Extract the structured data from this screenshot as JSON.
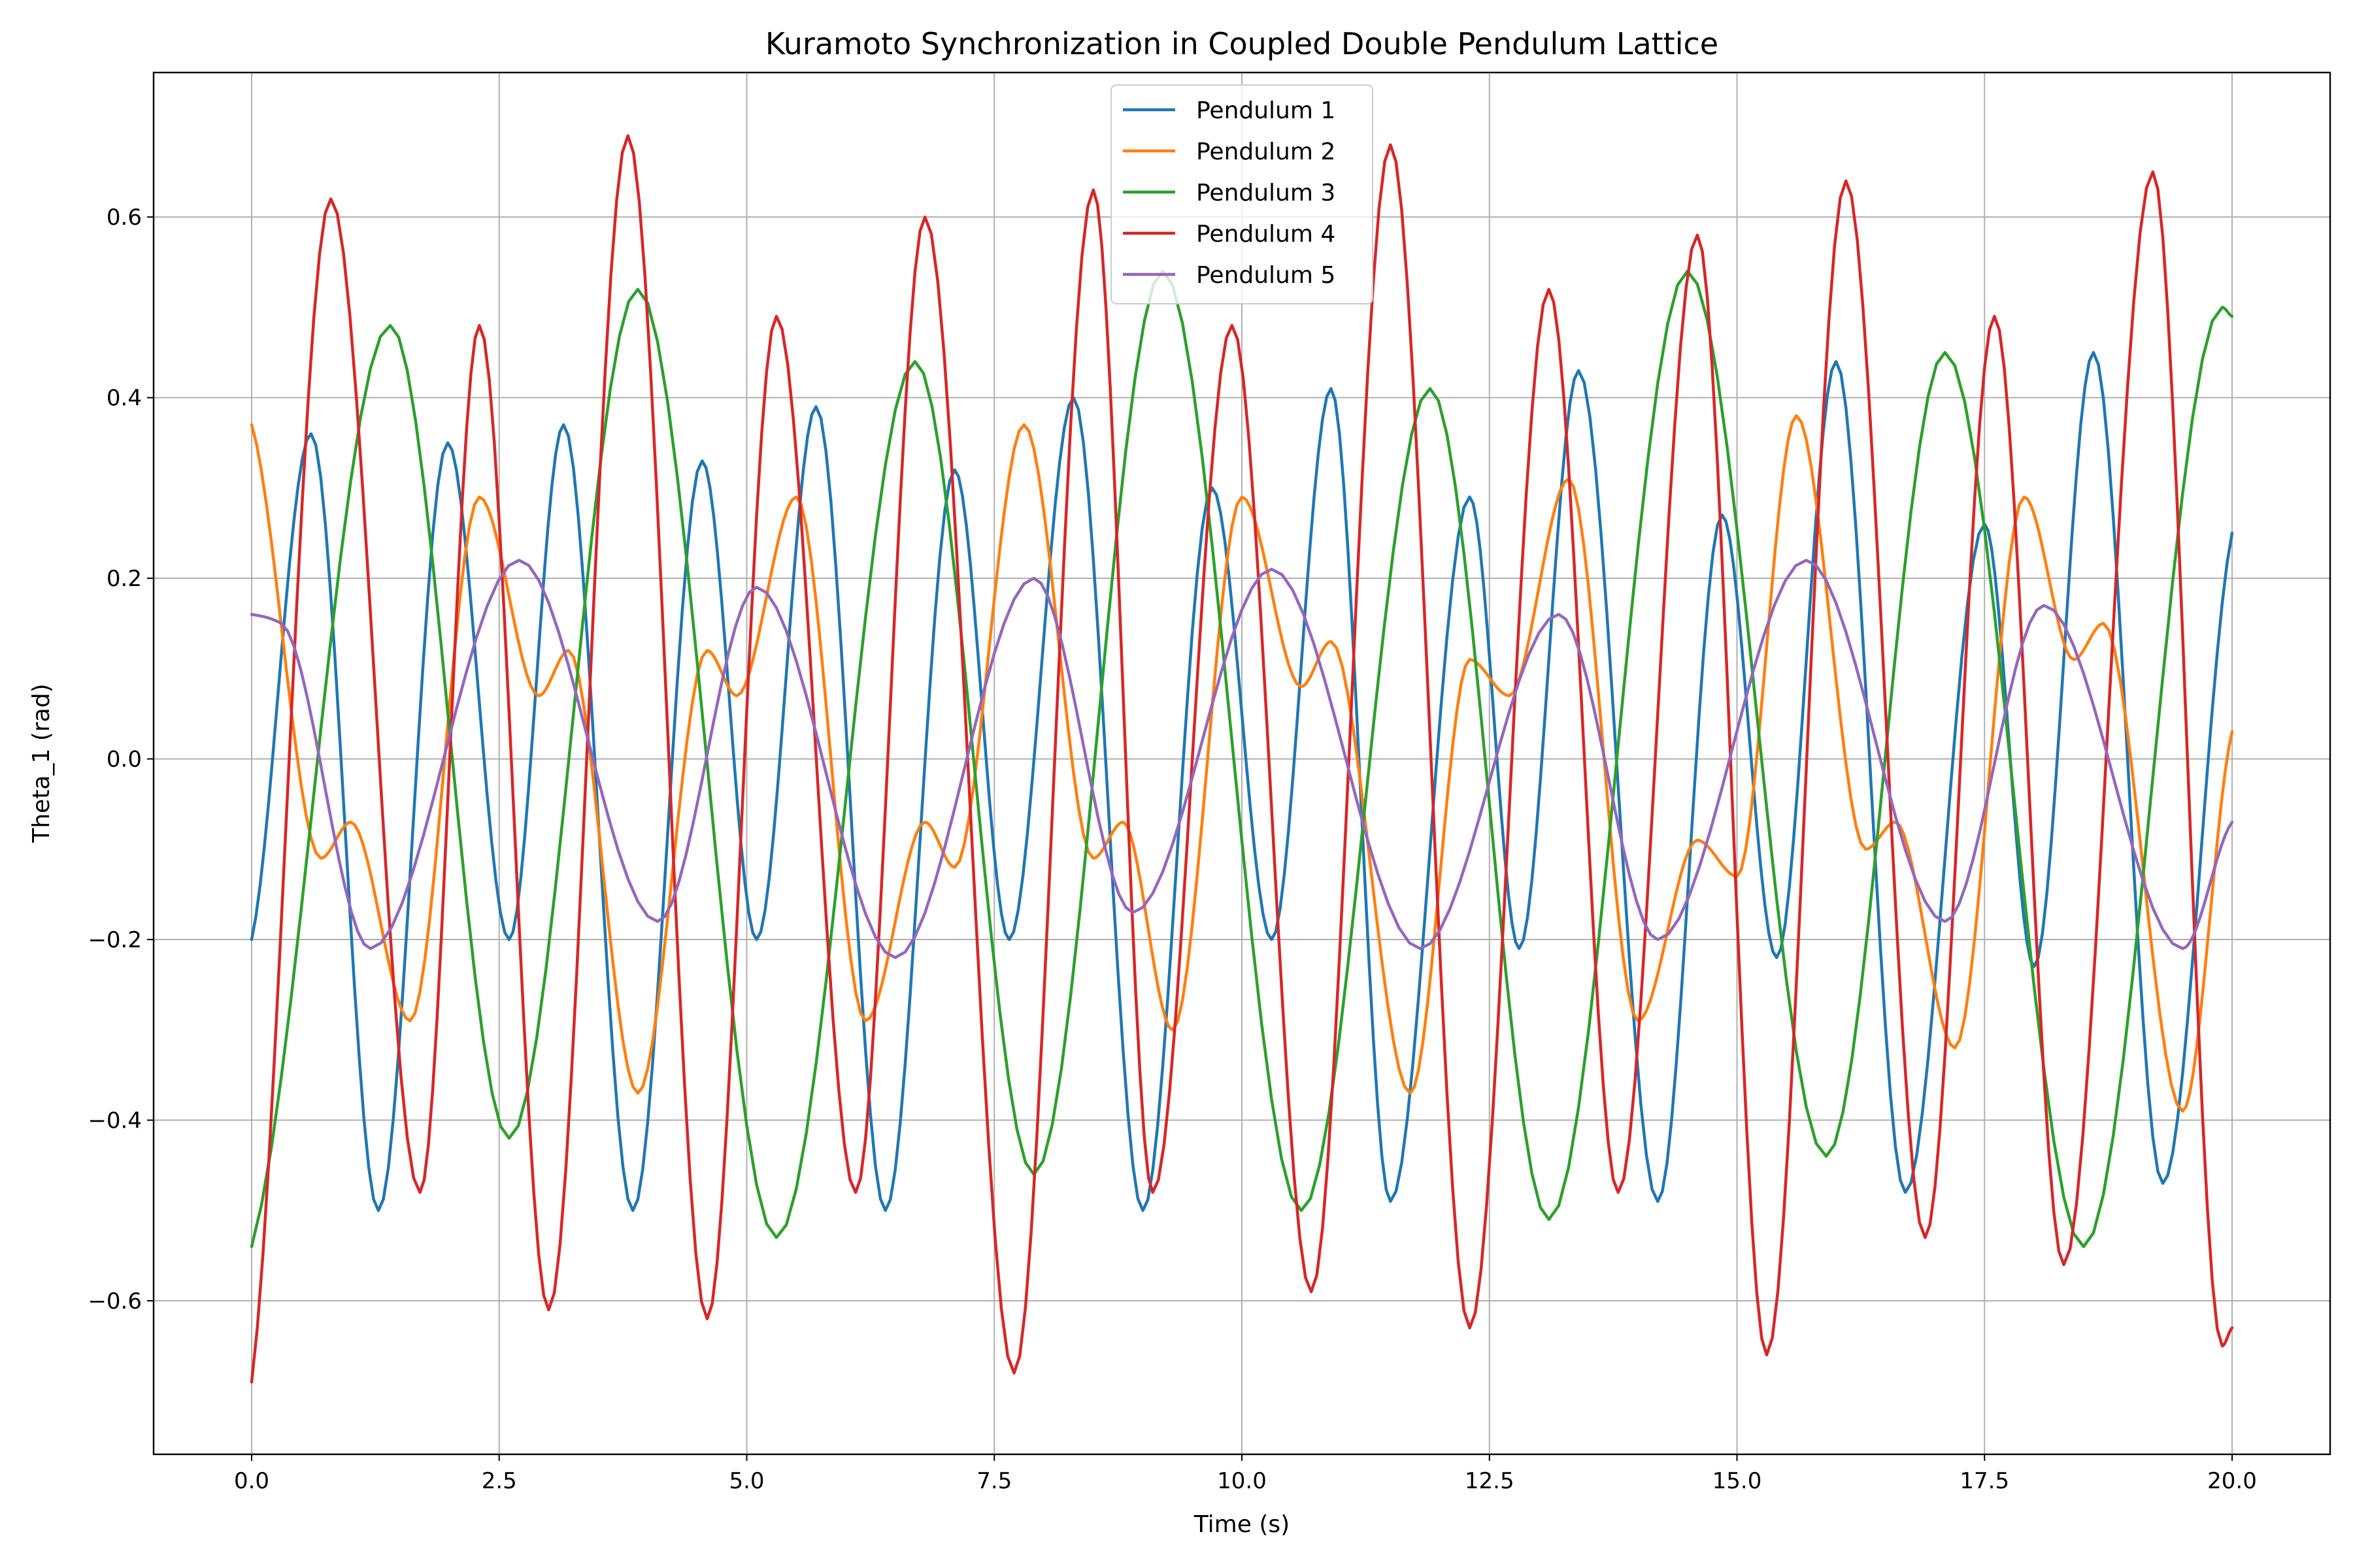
{
  "chart_data": {
    "type": "line",
    "title": "Kuramoto Synchronization in Coupled Double Pendulum Lattice",
    "xlabel": "Time (s)",
    "ylabel": "Theta_1 (rad)",
    "xlim": [
      -0.99,
      20.99
    ],
    "ylim": [
      -0.77,
      0.76
    ],
    "xticks": [
      0.0,
      2.5,
      5.0,
      7.5,
      10.0,
      12.5,
      15.0,
      17.5,
      20.0
    ],
    "xtick_labels": [
      "0.0",
      "2.5",
      "5.0",
      "7.5",
      "10.0",
      "12.5",
      "15.0",
      "17.5",
      "20.0"
    ],
    "yticks": [
      -0.6,
      -0.4,
      -0.2,
      0.0,
      0.2,
      0.4,
      0.6
    ],
    "ytick_labels": [
      "−0.6",
      "−0.4",
      "−0.2",
      "0.0",
      "0.2",
      "0.4",
      "0.6"
    ],
    "grid": true,
    "legend_position": "top-center",
    "series": [
      {
        "name": "Pendulum 1",
        "color": "#1f77b4",
        "points": [
          [
            0.0,
            -0.2
          ],
          [
            0.6,
            0.36
          ],
          [
            1.28,
            -0.5
          ],
          [
            1.98,
            0.35
          ],
          [
            2.6,
            -0.2
          ],
          [
            3.15,
            0.37
          ],
          [
            3.85,
            -0.5
          ],
          [
            4.55,
            0.33
          ],
          [
            5.1,
            -0.2
          ],
          [
            5.7,
            0.39
          ],
          [
            6.4,
            -0.5
          ],
          [
            7.1,
            0.32
          ],
          [
            7.65,
            -0.2
          ],
          [
            8.3,
            0.4
          ],
          [
            9.0,
            -0.5
          ],
          [
            9.7,
            0.3
          ],
          [
            10.3,
            -0.2
          ],
          [
            10.9,
            0.41
          ],
          [
            11.5,
            -0.49
          ],
          [
            12.3,
            0.29
          ],
          [
            12.8,
            -0.21
          ],
          [
            13.4,
            0.43
          ],
          [
            14.2,
            -0.49
          ],
          [
            14.85,
            0.27
          ],
          [
            15.4,
            -0.22
          ],
          [
            16.0,
            0.44
          ],
          [
            16.7,
            -0.48
          ],
          [
            17.5,
            0.26
          ],
          [
            18.0,
            -0.23
          ],
          [
            18.6,
            0.45
          ],
          [
            19.3,
            -0.47
          ],
          [
            20.0,
            0.25
          ]
        ]
      },
      {
        "name": "Pendulum 2",
        "color": "#ff7f0e",
        "points": [
          [
            0.0,
            0.37
          ],
          [
            0.7,
            -0.11
          ],
          [
            1.0,
            -0.07
          ],
          [
            1.6,
            -0.29
          ],
          [
            2.3,
            0.29
          ],
          [
            2.9,
            0.07
          ],
          [
            3.2,
            0.12
          ],
          [
            3.9,
            -0.37
          ],
          [
            4.6,
            0.12
          ],
          [
            4.9,
            0.07
          ],
          [
            5.5,
            0.29
          ],
          [
            6.2,
            -0.29
          ],
          [
            6.8,
            -0.07
          ],
          [
            7.1,
            -0.12
          ],
          [
            7.8,
            0.37
          ],
          [
            8.5,
            -0.11
          ],
          [
            8.8,
            -0.07
          ],
          [
            9.3,
            -0.3
          ],
          [
            10.0,
            0.29
          ],
          [
            10.6,
            0.08
          ],
          [
            10.9,
            0.13
          ],
          [
            11.7,
            -0.37
          ],
          [
            12.3,
            0.11
          ],
          [
            12.7,
            0.07
          ],
          [
            13.3,
            0.31
          ],
          [
            14.0,
            -0.29
          ],
          [
            14.6,
            -0.09
          ],
          [
            15.0,
            -0.13
          ],
          [
            15.6,
            0.38
          ],
          [
            16.3,
            -0.1
          ],
          [
            16.6,
            -0.07
          ],
          [
            17.2,
            -0.32
          ],
          [
            17.9,
            0.29
          ],
          [
            18.4,
            0.11
          ],
          [
            18.7,
            0.15
          ],
          [
            19.5,
            -0.39
          ],
          [
            20.0,
            0.03
          ]
        ]
      },
      {
        "name": "Pendulum 3",
        "color": "#2ca02c",
        "points": [
          [
            0.0,
            -0.54
          ],
          [
            1.4,
            0.48
          ],
          [
            2.6,
            -0.42
          ],
          [
            3.9,
            0.52
          ],
          [
            5.3,
            -0.53
          ],
          [
            6.7,
            0.44
          ],
          [
            7.9,
            -0.46
          ],
          [
            9.2,
            0.54
          ],
          [
            10.6,
            -0.5
          ],
          [
            11.9,
            0.41
          ],
          [
            13.1,
            -0.51
          ],
          [
            14.5,
            0.54
          ],
          [
            15.9,
            -0.44
          ],
          [
            17.1,
            0.45
          ],
          [
            18.5,
            -0.54
          ],
          [
            19.9,
            0.5
          ],
          [
            20.0,
            0.49
          ]
        ]
      },
      {
        "name": "Pendulum 4",
        "color": "#d62728",
        "points": [
          [
            0.0,
            -0.69
          ],
          [
            0.8,
            0.62
          ],
          [
            1.7,
            -0.48
          ],
          [
            2.3,
            0.48
          ],
          [
            3.0,
            -0.61
          ],
          [
            3.8,
            0.69
          ],
          [
            4.6,
            -0.62
          ],
          [
            5.3,
            0.49
          ],
          [
            6.1,
            -0.48
          ],
          [
            6.8,
            0.6
          ],
          [
            7.7,
            -0.68
          ],
          [
            8.5,
            0.63
          ],
          [
            9.1,
            -0.48
          ],
          [
            9.9,
            0.48
          ],
          [
            10.7,
            -0.59
          ],
          [
            11.5,
            0.68
          ],
          [
            12.3,
            -0.63
          ],
          [
            13.1,
            0.52
          ],
          [
            13.8,
            -0.48
          ],
          [
            14.6,
            0.58
          ],
          [
            15.3,
            -0.66
          ],
          [
            16.1,
            0.64
          ],
          [
            16.9,
            -0.53
          ],
          [
            17.6,
            0.49
          ],
          [
            18.3,
            -0.56
          ],
          [
            19.2,
            0.65
          ],
          [
            19.9,
            -0.65
          ],
          [
            20.0,
            -0.63
          ]
        ]
      },
      {
        "name": "Pendulum 5",
        "color": "#9467bd",
        "points": [
          [
            0.0,
            0.16
          ],
          [
            0.3,
            0.15
          ],
          [
            1.2,
            -0.21
          ],
          [
            2.7,
            0.22
          ],
          [
            4.1,
            -0.18
          ],
          [
            5.1,
            0.19
          ],
          [
            6.5,
            -0.22
          ],
          [
            7.9,
            0.2
          ],
          [
            8.9,
            -0.17
          ],
          [
            10.3,
            0.21
          ],
          [
            11.8,
            -0.21
          ],
          [
            13.2,
            0.16
          ],
          [
            14.2,
            -0.2
          ],
          [
            15.7,
            0.22
          ],
          [
            17.1,
            -0.18
          ],
          [
            18.1,
            0.17
          ],
          [
            19.5,
            -0.21
          ],
          [
            20.0,
            -0.07
          ]
        ]
      }
    ]
  }
}
